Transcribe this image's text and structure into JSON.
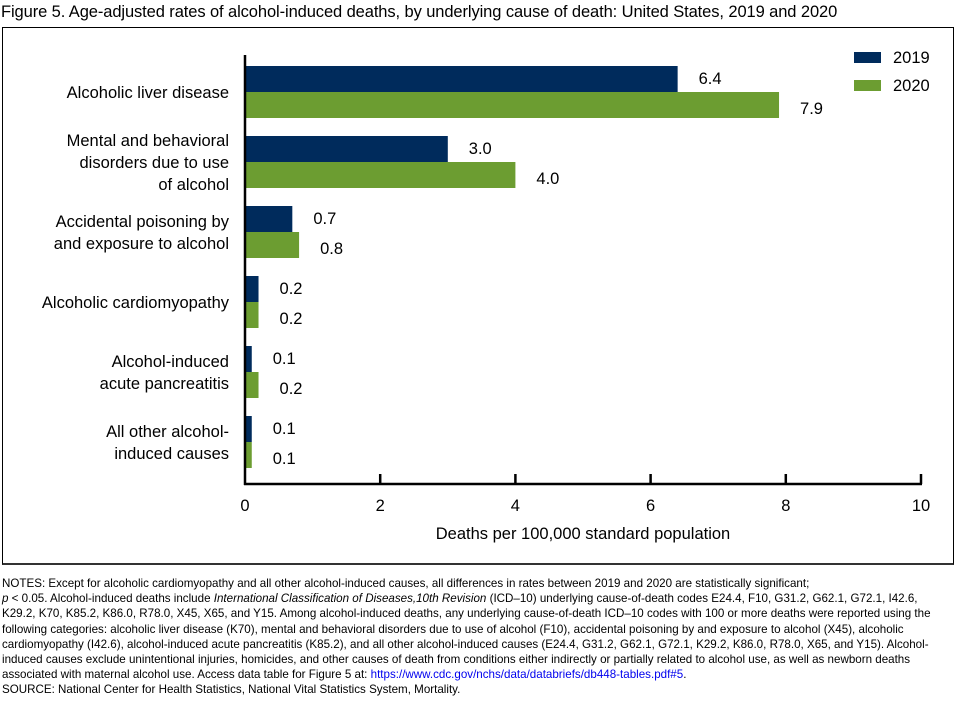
{
  "title": "Figure 5. Age-adjusted rates of alcohol-induced deaths, by underlying cause of death: United States, 2019 and 2020",
  "chart_data": {
    "type": "bar",
    "orientation": "horizontal",
    "title": "Figure 5. Age-adjusted rates of alcohol-induced deaths, by underlying cause of death: United States, 2019 and 2020",
    "xlabel": "Deaths per 100,000 standard population",
    "ylabel": "",
    "xlim": [
      0,
      10
    ],
    "xticks": [
      "0",
      "2",
      "4",
      "6",
      "8",
      "10"
    ],
    "grid": false,
    "legend_position": "top-right",
    "categories": [
      [
        "Alcoholic liver disease"
      ],
      [
        "Mental and behavioral",
        "disorders due to use",
        "of alcohol"
      ],
      [
        "Accidental poisoning by",
        "and exposure to alcohol"
      ],
      [
        "Alcoholic cardiomyopathy"
      ],
      [
        "Alcohol-induced",
        "acute pancreatitis"
      ],
      [
        "All other alcohol-",
        "induced causes"
      ]
    ],
    "series": [
      {
        "name": "2019",
        "color": "#002b5c",
        "values": [
          6.4,
          3.0,
          0.7,
          0.2,
          0.1,
          0.1
        ],
        "labels": [
          "6.4",
          "3.0",
          "0.7",
          "0.2",
          "0.1",
          "0.1"
        ]
      },
      {
        "name": "2020",
        "color": "#6c9d31",
        "values": [
          7.9,
          4.0,
          0.8,
          0.2,
          0.2,
          0.1
        ],
        "labels": [
          "7.9",
          "4.0",
          "0.8",
          "0.2",
          "0.2",
          "0.1"
        ]
      }
    ]
  },
  "notes": {
    "line_prefix": "NOTES: Except for alcoholic cardiomyopathy and all other alcohol-induced causes, all differences in rates between 2019 and 2020 are statistically significant;",
    "p_italic": "p",
    "p_text": " < 0.05. Alcohol-induced deaths include ",
    "icd_italic": "International Classification of Diseases,10th Revision",
    "body": " (ICD–10) underlying cause-of-death codes E24.4, F10, G31.2, G62.1, G72.1, I42.6, K29.2, K70, K85.2, K86.0, R78.0, X45, X65, and Y15. Among alcohol-induced deaths, any underlying cause-of-death ICD–10 codes with 100 or more deaths were reported using the following categories: alcoholic liver disease (K70), mental and behavioral disorders due to use of alcohol (F10), accidental poisoning by and exposure to alcohol (X45), alcoholic cardiomyopathy (I42.6), alcohol-induced acute pancreatitis (K85.2), and all other alcohol-induced causes (E24.4, G31.2, G62.1, G72.1, K29.2, K86.0, R78.0, X65, and Y15). Alcohol-induced causes exclude unintentional injuries, homicides, and other causes of death from conditions either indirectly or partially related to alcohol use, as well as newborn deaths associated with maternal alcohol use. Access data table for Figure 5 at: ",
    "link_text": "https://www.cdc.gov/nchs/data/databriefs/db448-tables.pdf#5",
    "link_suffix": ".",
    "source": "SOURCE: National Center for Health Statistics, National Vital Statistics System, Mortality."
  }
}
